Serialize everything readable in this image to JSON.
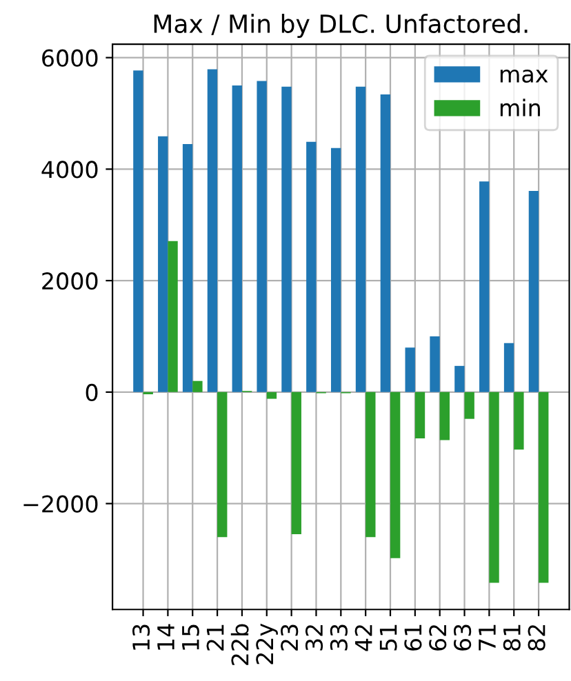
{
  "chart_data": {
    "type": "bar",
    "title": "Max / Min by DLC. Unfactored.",
    "categories": [
      "13",
      "14",
      "15",
      "21",
      "22b",
      "22y",
      "23",
      "32",
      "33",
      "42",
      "51",
      "61",
      "62",
      "63",
      "71",
      "81",
      "82"
    ],
    "series": [
      {
        "name": "max",
        "color": "#1f77b4",
        "values": [
          5770,
          4590,
          4450,
          5790,
          5500,
          5580,
          5480,
          4490,
          4380,
          5480,
          5340,
          800,
          1000,
          470,
          3780,
          880,
          3610
        ]
      },
      {
        "name": "min",
        "color": "#2ca02c",
        "values": [
          -40,
          2710,
          200,
          -2600,
          20,
          -120,
          -2550,
          -20,
          -20,
          -2600,
          -2980,
          -830,
          -860,
          -480,
          -3420,
          -1030,
          -3420
        ]
      }
    ],
    "ylim": [
      -3900,
      6240
    ],
    "yticks": [
      {
        "value": -2000,
        "label": "−2000"
      },
      0,
      2000,
      4000,
      6000
    ],
    "grid": true,
    "legend": "top right"
  }
}
